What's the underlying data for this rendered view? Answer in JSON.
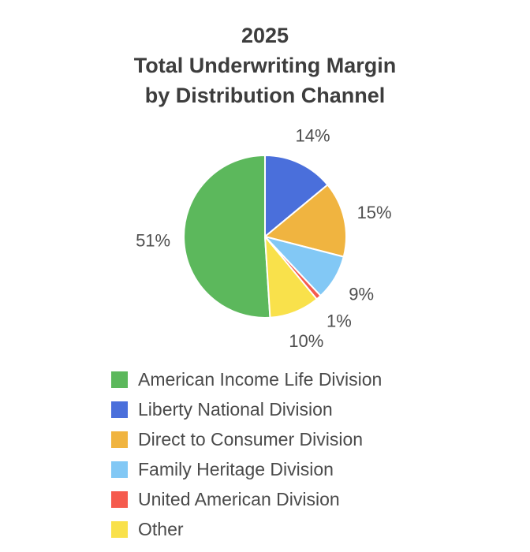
{
  "title": {
    "line1": "2025",
    "line2": "Total Underwriting Margin",
    "line3": "by Distribution Channel"
  },
  "chart_data": {
    "type": "pie",
    "title": "2025 Total Underwriting Margin by Distribution Channel",
    "direction": "clockwise",
    "start_angle_deg": 176.4,
    "legend_position": "bottom-left",
    "slices": [
      {
        "id": "american-income-life",
        "label": "American Income Life Division",
        "value": 51,
        "pct_label": "51%",
        "color": "#5cb85c"
      },
      {
        "id": "liberty-national",
        "label": "Liberty National Division",
        "value": 14,
        "pct_label": "14%",
        "color": "#4a6fdb"
      },
      {
        "id": "direct-to-consumer",
        "label": "Direct to Consumer Division",
        "value": 15,
        "pct_label": "15%",
        "color": "#f0b440"
      },
      {
        "id": "family-heritage",
        "label": "Family Heritage Division",
        "value": 9,
        "pct_label": "9%",
        "color": "#82c8f5"
      },
      {
        "id": "united-american",
        "label": "United American Division",
        "value": 1,
        "pct_label": "1%",
        "color": "#f55b4e"
      },
      {
        "id": "other",
        "label": "Other",
        "value": 10,
        "pct_label": "10%",
        "color": "#f9e14b"
      }
    ]
  }
}
